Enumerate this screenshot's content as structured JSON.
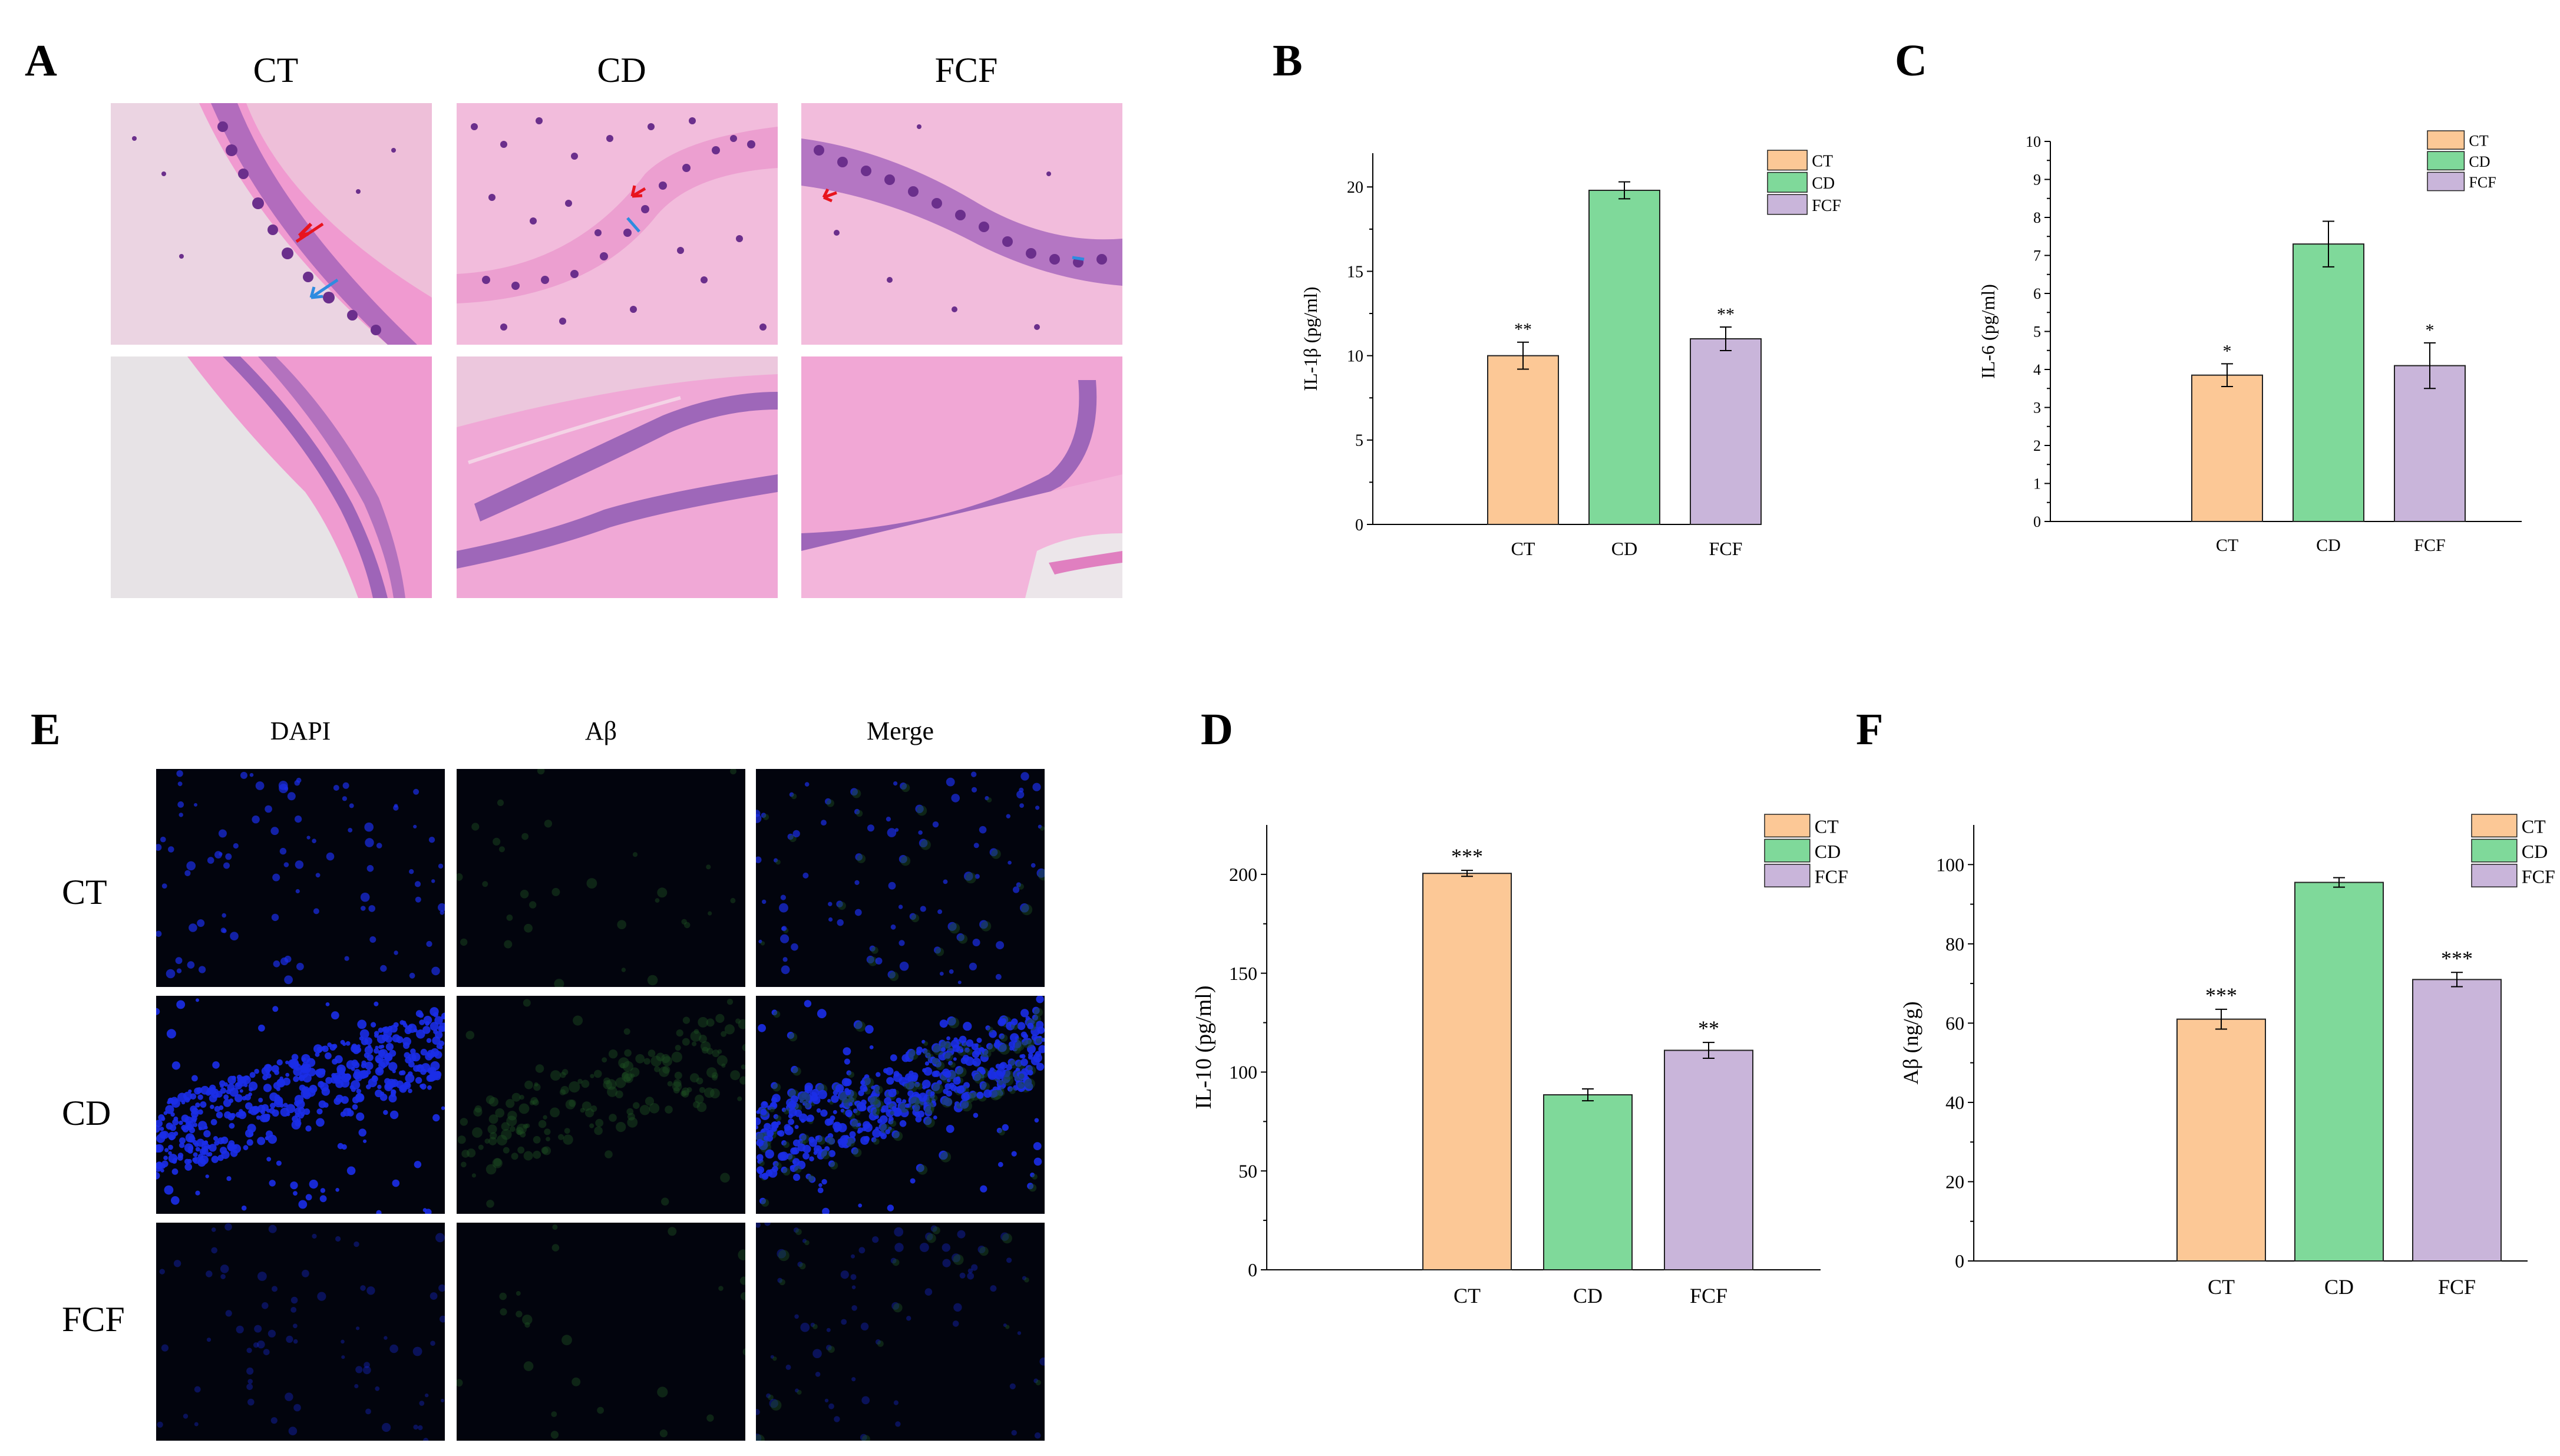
{
  "panels": {
    "A": "A",
    "B": "B",
    "C": "C",
    "D": "D",
    "E": "E",
    "F": "F"
  },
  "he": {
    "columns": [
      "CT",
      "CD",
      "FCF"
    ],
    "colors": {
      "tissue": "#e98fc8",
      "tissue_light": "#f2b9dc",
      "cell": "#7a3c9a",
      "background": "#e9e6ea"
    },
    "arrow_colors": {
      "red": "#e8141e",
      "blue": "#2f8be0"
    }
  },
  "ifl": {
    "columns": [
      "DAPI",
      "Aβ",
      "Merge"
    ],
    "rows": [
      "CT",
      "CD",
      "FCF"
    ],
    "colors": {
      "nucleus": "#1b2ee8",
      "amyloid": "#1d4d22",
      "background": "#02040d"
    }
  },
  "chart_data": [
    {
      "id": "B",
      "type": "bar",
      "categories": [
        "CT",
        "CD",
        "FCF"
      ],
      "values": [
        10.0,
        19.8,
        11.0
      ],
      "errors": [
        0.8,
        0.5,
        0.7
      ],
      "significance": [
        "**",
        "",
        "**"
      ],
      "colors": [
        "#fcc896",
        "#7fd99a",
        "#c9b5da"
      ],
      "xlabel": "",
      "ylabel": "IL-1β (pg/ml)",
      "ylim": [
        0,
        22
      ],
      "yticks": [
        0,
        5,
        10,
        15,
        20
      ],
      "legend": [
        "CT",
        "CD",
        "FCF"
      ],
      "legend_position": "top-right",
      "grid": false
    },
    {
      "id": "C",
      "type": "bar",
      "categories": [
        "CT",
        "CD",
        "FCF"
      ],
      "values": [
        3.85,
        7.3,
        4.1
      ],
      "errors": [
        0.3,
        0.6,
        0.6
      ],
      "significance": [
        "*",
        "",
        "*"
      ],
      "colors": [
        "#fcc896",
        "#7fd99a",
        "#c9b5da"
      ],
      "xlabel": "",
      "ylabel": "IL-6 (pg/ml)",
      "ylim": [
        0,
        10
      ],
      "yticks": [
        0,
        1,
        2,
        3,
        4,
        5,
        6,
        7,
        8,
        9,
        10
      ],
      "legend": [
        "CT",
        "CD",
        "FCF"
      ],
      "legend_position": "top-right",
      "grid": false
    },
    {
      "id": "D",
      "type": "bar",
      "categories": [
        "CT",
        "CD",
        "FCF"
      ],
      "values": [
        200.5,
        88.5,
        111.0
      ],
      "errors": [
        1.5,
        3.0,
        4.0
      ],
      "significance": [
        "***",
        "",
        "**"
      ],
      "colors": [
        "#fcc896",
        "#7fd99a",
        "#c9b5da"
      ],
      "xlabel": "",
      "ylabel": "IL-10 (pg/ml)",
      "ylim": [
        0,
        225
      ],
      "yticks": [
        0,
        50,
        100,
        150,
        200
      ],
      "legend": [
        "CT",
        "CD",
        "FCF"
      ],
      "legend_position": "top-right",
      "grid": false
    },
    {
      "id": "F",
      "type": "bar",
      "categories": [
        "CT",
        "CD",
        "FCF"
      ],
      "values": [
        61.0,
        95.5,
        71.0
      ],
      "errors": [
        2.5,
        1.2,
        1.8
      ],
      "significance": [
        "***",
        "",
        "***"
      ],
      "colors": [
        "#fcc896",
        "#7fd99a",
        "#c9b5da"
      ],
      "xlabel": "",
      "ylabel": "Aβ (ng/g)",
      "ylim": [
        0,
        110
      ],
      "yticks": [
        0,
        20,
        40,
        60,
        80,
        100
      ],
      "legend": [
        "CT",
        "CD",
        "FCF"
      ],
      "legend_position": "top-right",
      "grid": false
    }
  ]
}
